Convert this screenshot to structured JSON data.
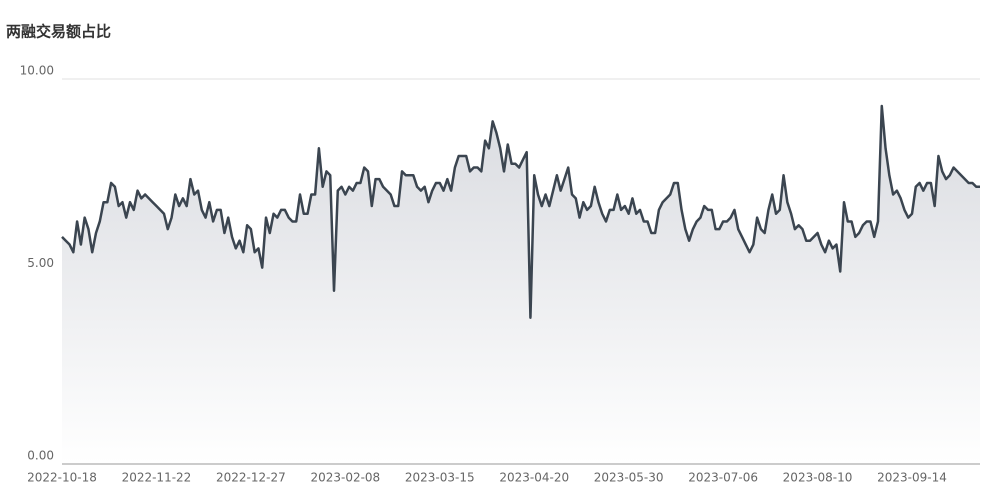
{
  "chart_data": {
    "type": "area-line",
    "title": "两融交易额占比",
    "categories": [
      "2022-10-18",
      null,
      null,
      null,
      null,
      null,
      null,
      null,
      null,
      null,
      null,
      null,
      null,
      null,
      null,
      null,
      null,
      null,
      null,
      null,
      null,
      null,
      null,
      null,
      null,
      "2022-11-22",
      null,
      null,
      null,
      null,
      null,
      null,
      null,
      null,
      null,
      null,
      null,
      null,
      null,
      null,
      null,
      null,
      null,
      null,
      null,
      null,
      null,
      null,
      null,
      null,
      "2022-12-27",
      null,
      null,
      null,
      null,
      null,
      null,
      null,
      null,
      null,
      null,
      null,
      null,
      null,
      null,
      null,
      null,
      null,
      null,
      null,
      null,
      null,
      null,
      null,
      null,
      "2023-02-08",
      null,
      null,
      null,
      null,
      null,
      null,
      null,
      null,
      null,
      null,
      null,
      null,
      null,
      null,
      null,
      null,
      null,
      null,
      null,
      null,
      null,
      null,
      null,
      null,
      "2023-03-15",
      null,
      null,
      null,
      null,
      null,
      null,
      null,
      null,
      null,
      null,
      null,
      null,
      null,
      null,
      null,
      null,
      null,
      null,
      null,
      null,
      null,
      null,
      null,
      null,
      "2023-04-20",
      null,
      null,
      null,
      null,
      null,
      null,
      null,
      null,
      null,
      null,
      null,
      null,
      null,
      null,
      null,
      null,
      null,
      null,
      null,
      null,
      null,
      null,
      null,
      null,
      "2023-05-30",
      null,
      null,
      null,
      null,
      null,
      null,
      null,
      null,
      null,
      null,
      null,
      null,
      null,
      null,
      null,
      null,
      null,
      null,
      null,
      null,
      null,
      null,
      null,
      null,
      "2023-07-06",
      null,
      null,
      null,
      null,
      null,
      null,
      null,
      null,
      null,
      null,
      null,
      null,
      null,
      null,
      null,
      null,
      null,
      null,
      null,
      null,
      null,
      null,
      null,
      null,
      "2023-08-10",
      null,
      null,
      null,
      null,
      null,
      null,
      null,
      null,
      null,
      null,
      null,
      null,
      null,
      null,
      null,
      null,
      null,
      null,
      null,
      null,
      null,
      null,
      null,
      null,
      "2023-09-14",
      null,
      null,
      null,
      null,
      null,
      null,
      null,
      null,
      null,
      null,
      null,
      null,
      null,
      null,
      null,
      null,
      null,
      null
    ],
    "values": [
      5.9,
      5.8,
      5.7,
      5.5,
      6.3,
      5.7,
      6.4,
      6.1,
      5.5,
      6.0,
      6.3,
      6.8,
      6.8,
      7.3,
      7.2,
      6.7,
      6.8,
      6.4,
      6.8,
      6.6,
      7.1,
      6.9,
      7.0,
      6.9,
      6.8,
      6.7,
      6.6,
      6.5,
      6.1,
      6.4,
      7.0,
      6.7,
      6.9,
      6.7,
      7.4,
      7.0,
      7.1,
      6.6,
      6.4,
      6.8,
      6.3,
      6.6,
      6.6,
      6.0,
      6.4,
      5.9,
      5.6,
      5.8,
      5.5,
      6.2,
      6.1,
      5.5,
      5.6,
      5.1,
      6.4,
      6.0,
      6.5,
      6.4,
      6.6,
      6.6,
      6.4,
      6.3,
      6.3,
      7.0,
      6.5,
      6.5,
      7.0,
      7.0,
      8.2,
      7.2,
      7.6,
      7.5,
      4.5,
      7.1,
      7.2,
      7.0,
      7.2,
      7.1,
      7.3,
      7.3,
      7.7,
      7.6,
      6.7,
      7.4,
      7.4,
      7.2,
      7.1,
      7.0,
      6.7,
      6.7,
      7.6,
      7.5,
      7.5,
      7.5,
      7.2,
      7.1,
      7.2,
      6.8,
      7.1,
      7.3,
      7.3,
      7.1,
      7.4,
      7.1,
      7.7,
      8.0,
      8.0,
      8.0,
      7.6,
      7.7,
      7.7,
      7.6,
      8.4,
      8.2,
      8.9,
      8.6,
      8.2,
      7.6,
      8.3,
      7.8,
      7.8,
      7.7,
      7.9,
      8.1,
      3.8,
      7.5,
      7.0,
      6.7,
      7.0,
      6.7,
      7.1,
      7.5,
      7.1,
      7.4,
      7.7,
      7.0,
      6.9,
      6.4,
      6.8,
      6.6,
      6.7,
      7.2,
      6.8,
      6.5,
      6.3,
      6.6,
      6.6,
      7.0,
      6.6,
      6.7,
      6.5,
      6.9,
      6.5,
      6.6,
      6.3,
      6.3,
      6.0,
      6.0,
      6.6,
      6.8,
      6.9,
      7.0,
      7.3,
      7.3,
      6.6,
      6.1,
      5.8,
      6.1,
      6.3,
      6.4,
      6.7,
      6.6,
      6.6,
      6.1,
      6.1,
      6.3,
      6.3,
      6.4,
      6.6,
      6.1,
      5.9,
      5.7,
      5.5,
      5.7,
      6.4,
      6.1,
      6.0,
      6.6,
      7.0,
      6.5,
      6.6,
      7.5,
      6.8,
      6.5,
      6.1,
      6.2,
      6.1,
      5.8,
      5.8,
      5.9,
      6.0,
      5.7,
      5.5,
      5.8,
      5.6,
      5.7,
      5.0,
      6.8,
      6.3,
      6.3,
      5.9,
      6.0,
      6.2,
      6.3,
      6.3,
      5.9,
      6.3,
      9.3,
      8.2,
      7.5,
      7.0,
      7.1,
      6.9,
      6.6,
      6.4,
      6.5,
      7.2,
      7.3,
      7.1,
      7.3,
      7.3,
      6.7,
      8.0,
      7.6,
      7.4,
      7.5,
      7.7,
      7.6,
      7.5,
      7.4,
      7.3,
      7.3,
      7.2,
      7.2
    ],
    "color": "#3b4550",
    "ylim": [
      0,
      10
    ],
    "yticks": [
      {
        "value": 0,
        "label": "0.00"
      },
      {
        "value": 5,
        "label": "5.00"
      },
      {
        "value": 10,
        "label": "10.00"
      }
    ],
    "grid": true
  }
}
